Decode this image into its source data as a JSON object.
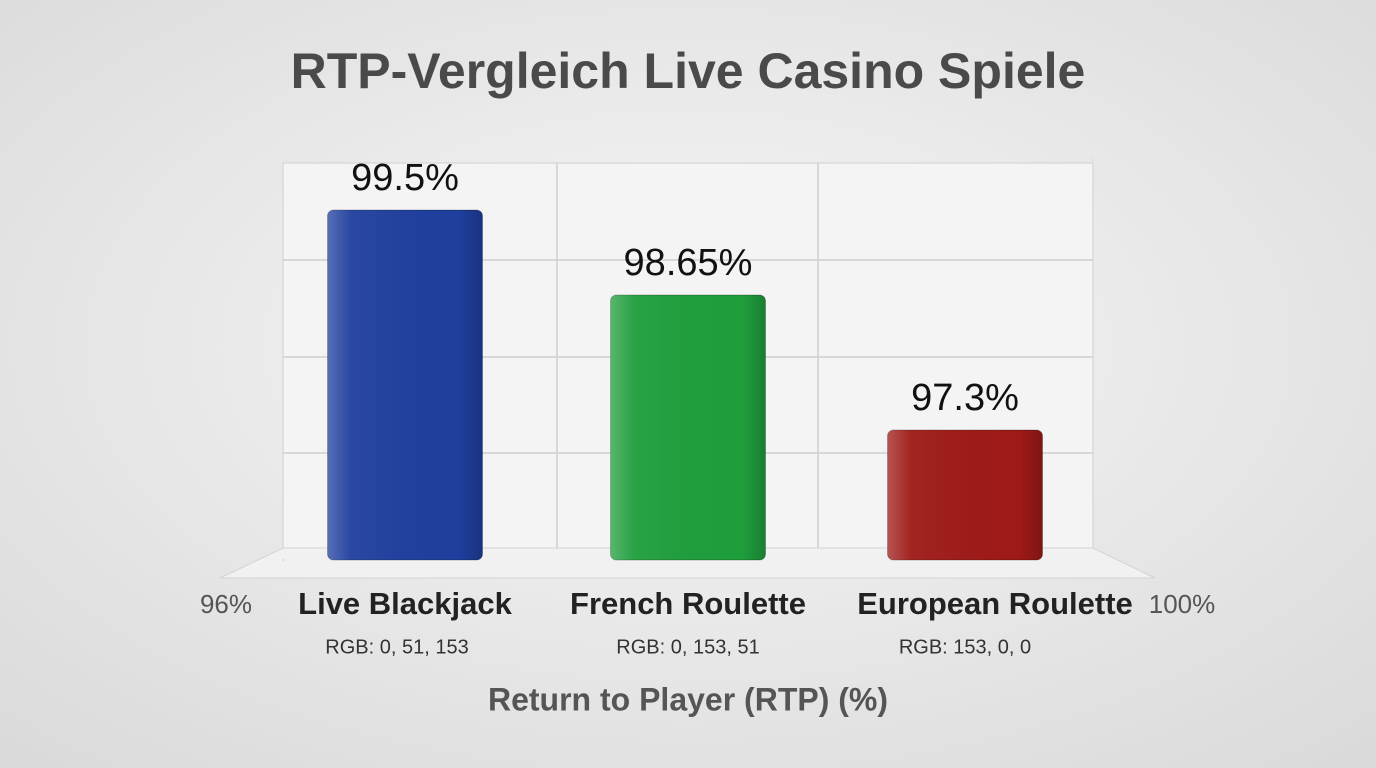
{
  "chart_data": {
    "type": "bar",
    "title": "RTP-Vergleich Live Casino Spiele",
    "categories": [
      "Live Blackjack",
      "French Roulette",
      "European Roulette"
    ],
    "category_notes": [
      "RGB: 0, 51, 153",
      "RGB: 0, 153, 51",
      "RGB: 153, 0, 0"
    ],
    "values": [
      99.5,
      98.65,
      97.3
    ],
    "value_labels": [
      "99.5%",
      "98.65%",
      "97.3%"
    ],
    "colors": [
      "#1f3f9e",
      "#1f9e3c",
      "#9e1a17"
    ],
    "x_label": "Return to Player (RTP) (%)",
    "ylim": [
      96,
      100
    ],
    "yticks": [
      {
        "value": 96,
        "label": "96%"
      },
      {
        "value": 100,
        "label": "100%"
      }
    ]
  }
}
